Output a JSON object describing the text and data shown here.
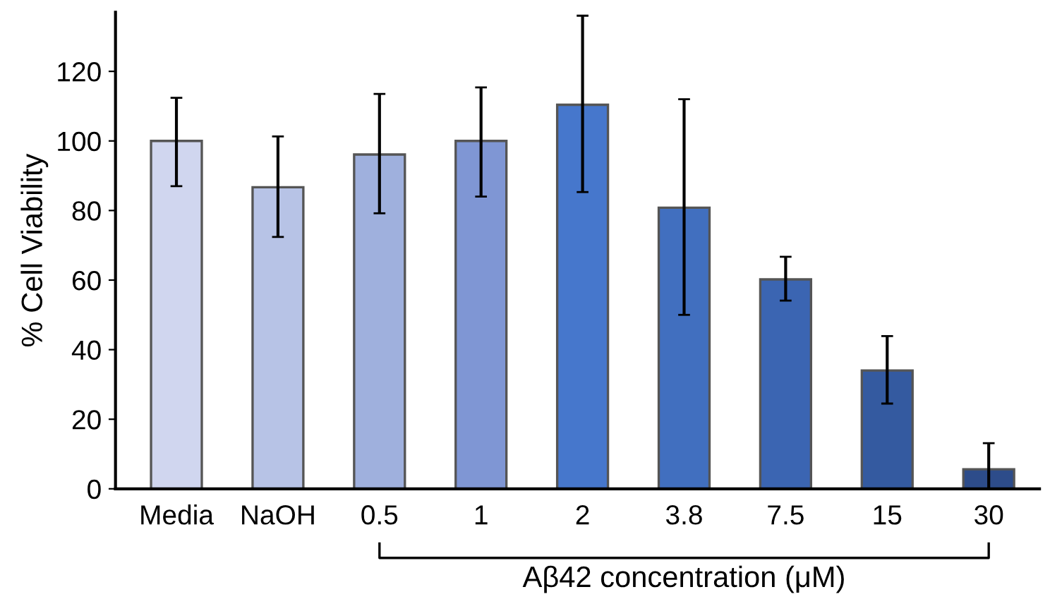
{
  "chart_data": {
    "type": "bar",
    "ylabel": "% Cell Viability",
    "categories": [
      "Media",
      "NaOH",
      "0.5",
      "1",
      "2",
      "3.8",
      "7.5",
      "15",
      "30"
    ],
    "values": [
      100,
      86.7,
      96.1,
      100,
      110.4,
      80.8,
      60.2,
      34,
      5.6
    ],
    "errors": [
      [
        87,
        112.4
      ],
      [
        72.4,
        101.3
      ],
      [
        79.2,
        113.5
      ],
      [
        84,
        115.4
      ],
      [
        85.3,
        136
      ],
      [
        50,
        112
      ],
      [
        54.1,
        66.7
      ],
      [
        24.5,
        43.9
      ],
      [
        0,
        13.1
      ]
    ],
    "colors": [
      "#d0d6ef",
      "#b7c3e6",
      "#9fb0dd",
      "#7f96d4",
      "#4677cc",
      "#416fbf",
      "#3b65b2",
      "#345aa0",
      "#2d4c8a"
    ],
    "ylim": [
      0,
      137
    ],
    "yticks": [
      0,
      20,
      40,
      60,
      80,
      100,
      120
    ],
    "grid": false,
    "annotations": [
      "Aβ42 concentration (μM)"
    ]
  }
}
